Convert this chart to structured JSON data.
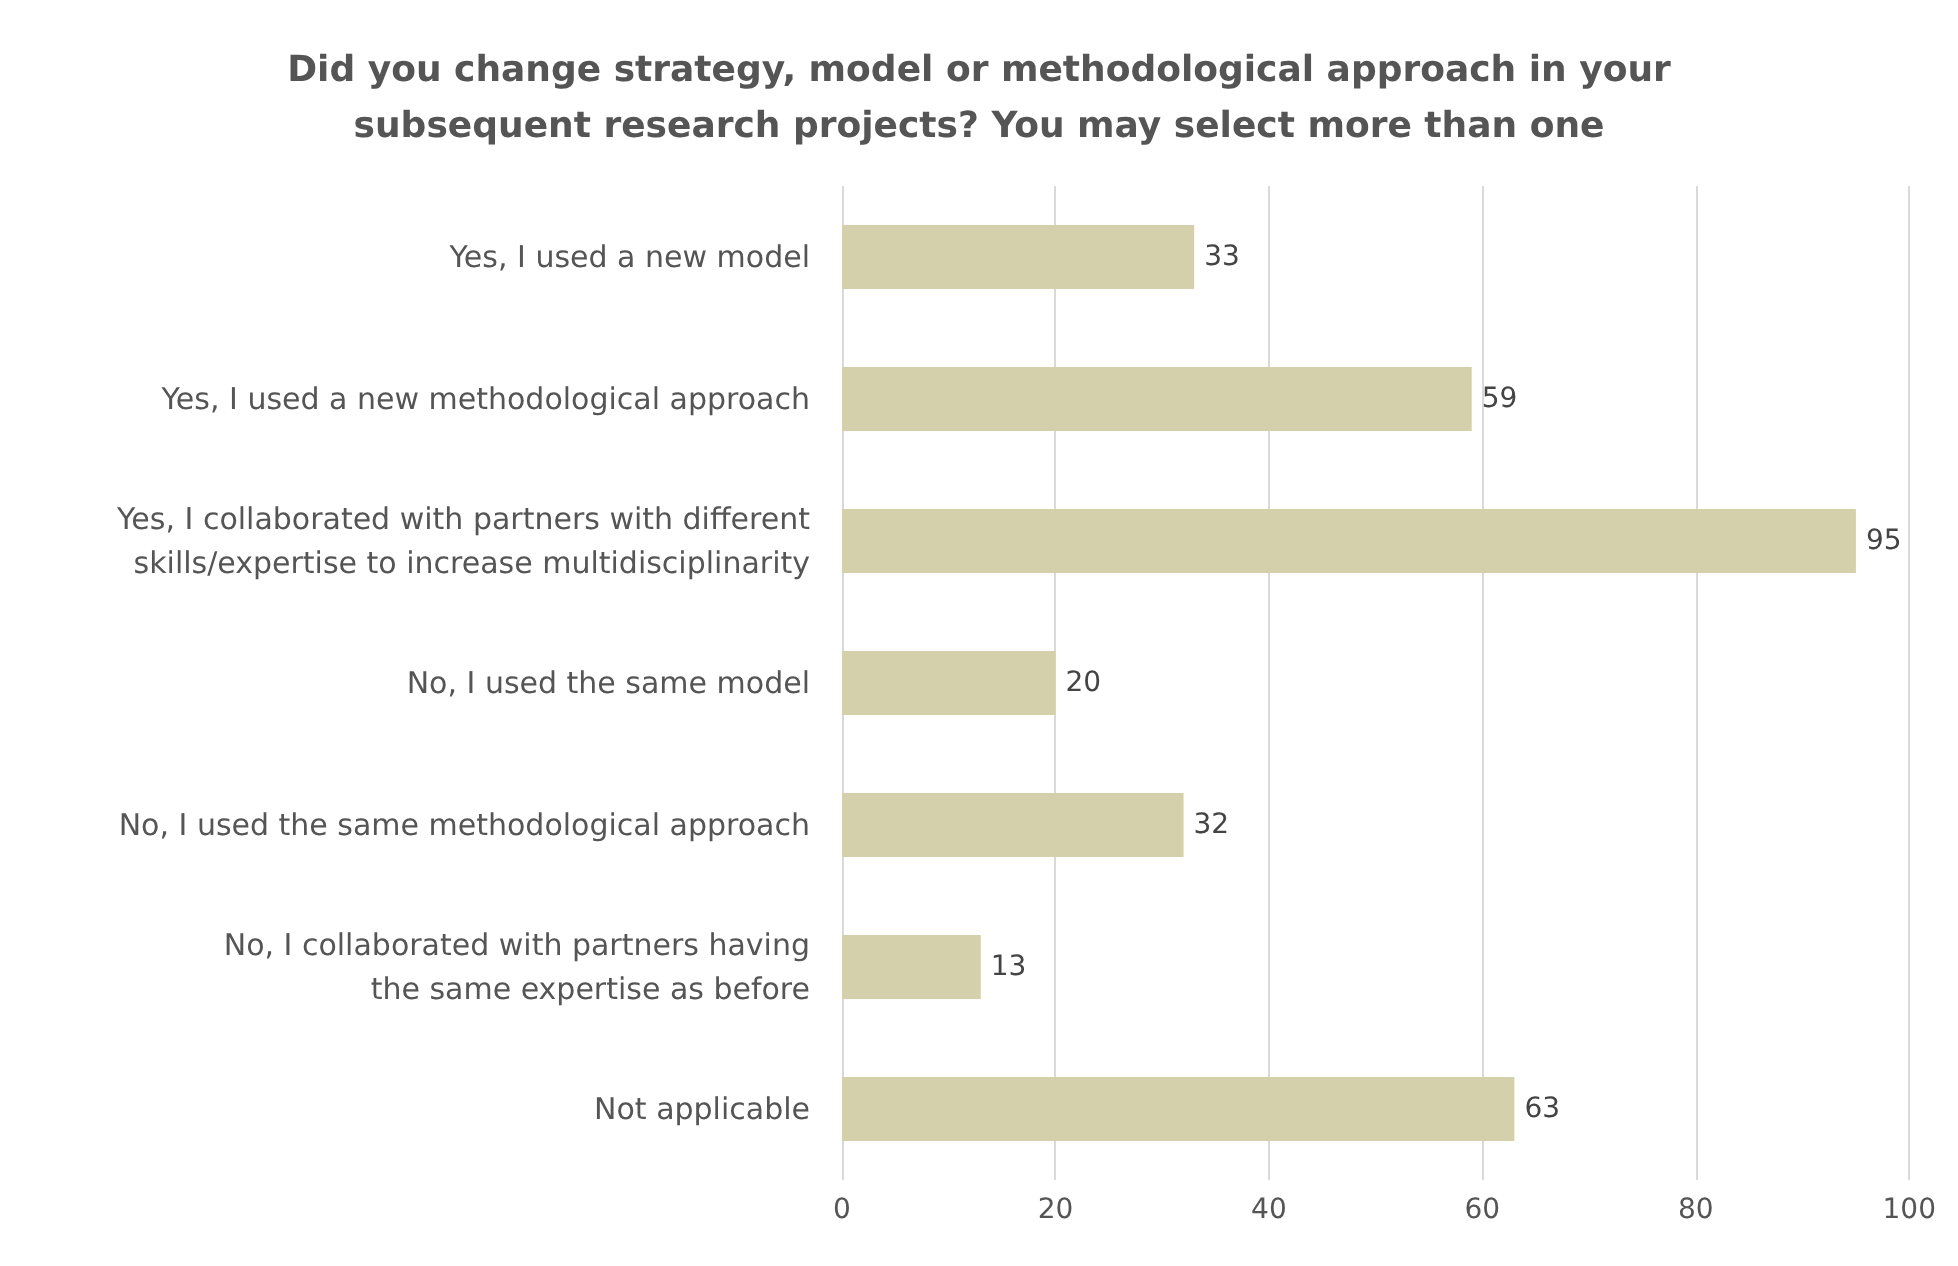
{
  "chart_data": {
    "type": "bar",
    "orientation": "horizontal",
    "title": "Did you change strategy, model or methodological approach in your\nsubsequent research projects? You may select more than one",
    "categories": [
      "Yes, I used a new model",
      "Yes, I used a new methodological approach",
      "Yes, I collaborated with partners with different\nskills/expertise to increase multidisciplinarity",
      "No, I used the same model",
      "No, I used the same methodological approach",
      "No, I collaborated with partners having\nthe same expertise as before",
      "Not applicable"
    ],
    "values": [
      33,
      59,
      95,
      20,
      32,
      13,
      63
    ],
    "color": "#d3d0ab",
    "xlim": [
      0,
      100
    ],
    "xticks": [
      0,
      20,
      40,
      60,
      80,
      100
    ],
    "grid": "x",
    "data_labels": true
  }
}
